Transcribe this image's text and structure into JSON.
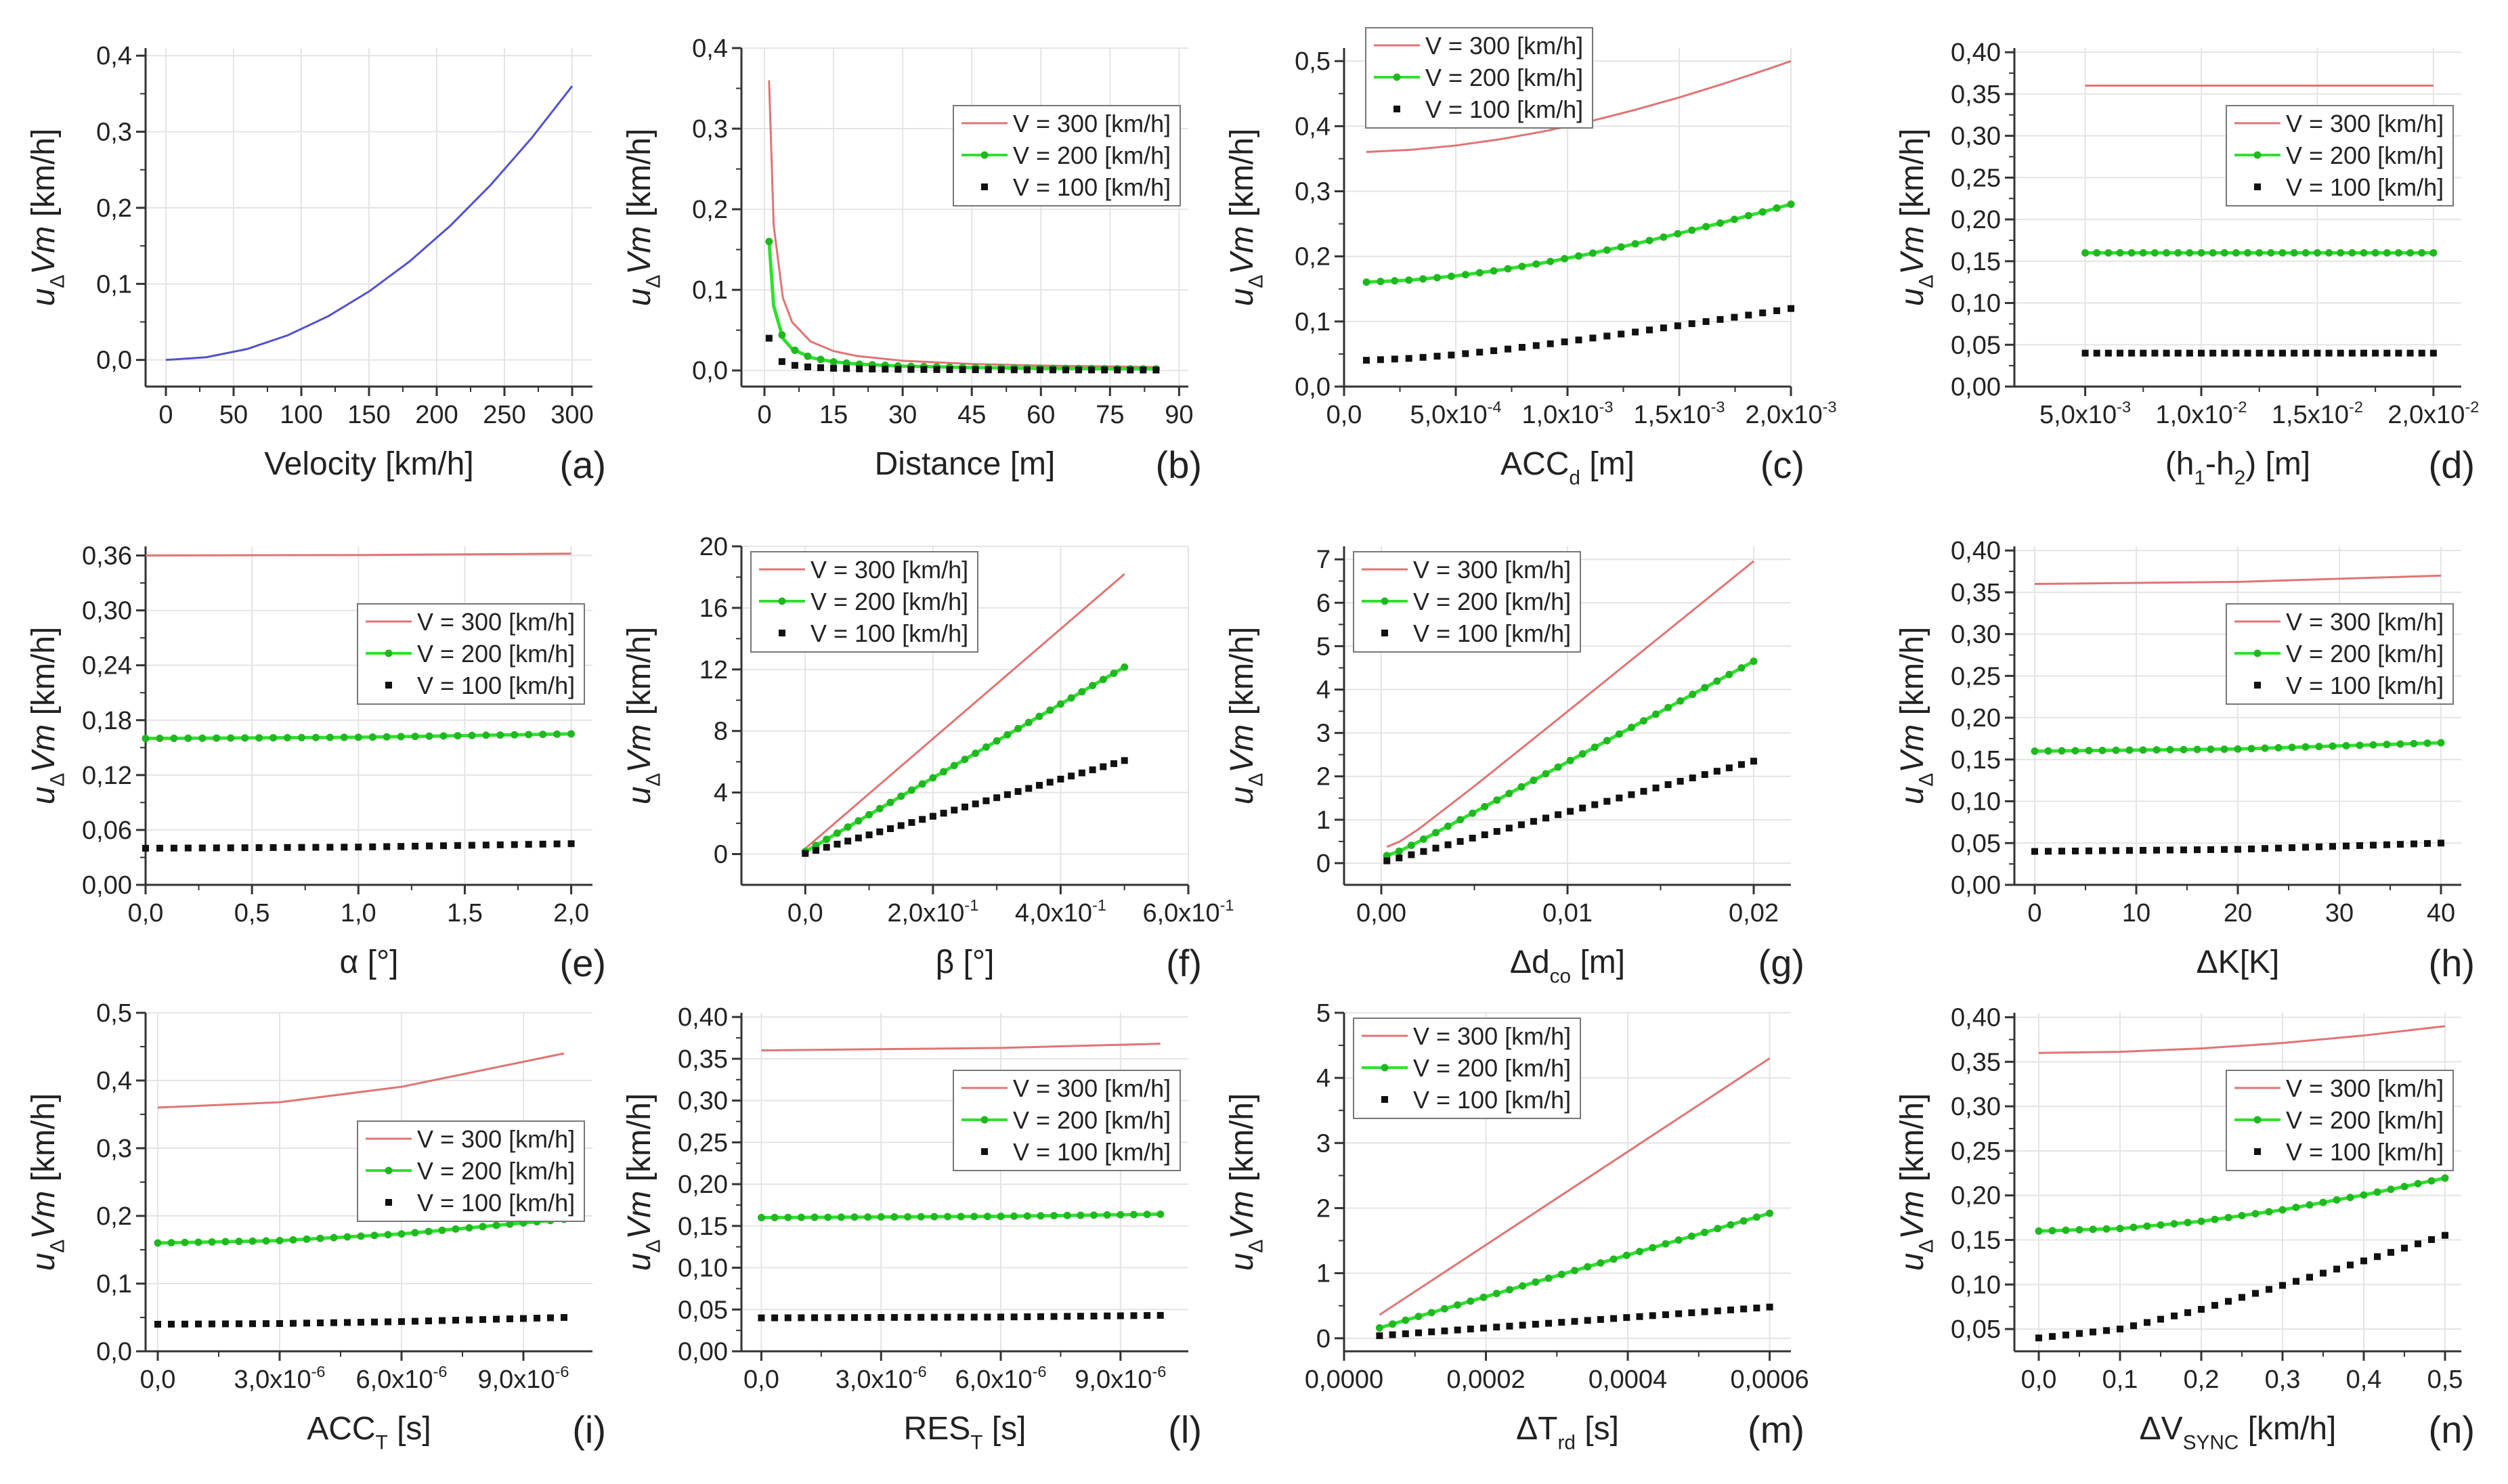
{
  "series_colors": {
    "single": "#5252cc",
    "v300": "#e07474",
    "v200": "#2fe02f",
    "v200_marker": "#1fb81f",
    "v100": "#111111",
    "grid": "#e4e4e4",
    "axis": "#333333"
  },
  "ylabel": "*u*_{Δ}*Vm* [km/h]",
  "chart_data": [
    {
      "id": "a",
      "panel_label": "(a)",
      "type": "line",
      "xlabel": "Velocity [km/h]",
      "legend": null,
      "xlim": [
        -15,
        315
      ],
      "ylim": [
        -0.035,
        0.41
      ],
      "xticks": [
        [
          0,
          "0"
        ],
        [
          50,
          "50"
        ],
        [
          100,
          "100"
        ],
        [
          150,
          "150"
        ],
        [
          200,
          "200"
        ],
        [
          250,
          "250"
        ],
        [
          300,
          "300"
        ]
      ],
      "yticks": [
        [
          0,
          "0,0"
        ],
        [
          0.1,
          "0,1"
        ],
        [
          0.2,
          "0,2"
        ],
        [
          0.3,
          "0,3"
        ],
        [
          0.4,
          "0,4"
        ]
      ],
      "x": [
        0,
        30,
        60,
        90,
        120,
        150,
        180,
        210,
        240,
        270,
        300
      ],
      "series": [
        {
          "name": "u",
          "y": [
            0,
            0.0036,
            0.0144,
            0.0324,
            0.0576,
            0.09,
            0.1296,
            0.1764,
            0.2304,
            0.2916,
            0.36
          ]
        }
      ]
    },
    {
      "id": "b",
      "panel_label": "(b)",
      "type": "line",
      "xlabel": "Distance [m]",
      "legend": "upper-right",
      "xlim": [
        -5,
        92
      ],
      "ylim": [
        -0.02,
        0.4
      ],
      "xticks": [
        [
          0,
          "0"
        ],
        [
          15,
          "15"
        ],
        [
          30,
          "30"
        ],
        [
          45,
          "45"
        ],
        [
          60,
          "60"
        ],
        [
          75,
          "75"
        ],
        [
          90,
          "90"
        ]
      ],
      "yticks": [
        [
          0,
          "0,0"
        ],
        [
          0.1,
          "0,1"
        ],
        [
          0.2,
          "0,2"
        ],
        [
          0.3,
          "0,3"
        ],
        [
          0.4,
          "0,4"
        ]
      ],
      "x": [
        1,
        2,
        4,
        6,
        10,
        15,
        20,
        30,
        45,
        60,
        85
      ],
      "series": [
        {
          "name": "V = 300 [km/h]",
          "y": [
            0.36,
            0.18,
            0.09,
            0.06,
            0.036,
            0.024,
            0.018,
            0.012,
            0.008,
            0.006,
            0.0042
          ]
        },
        {
          "name": "V = 200 [km/h]",
          "y": [
            0.16,
            0.08,
            0.04,
            0.0267,
            0.016,
            0.0107,
            0.008,
            0.0053,
            0.0036,
            0.0027,
            0.0019
          ]
        },
        {
          "name": "V = 100 [km/h]",
          "y": [
            0.04,
            0.02,
            0.01,
            0.0067,
            0.004,
            0.0027,
            0.002,
            0.0013,
            0.0009,
            0.0007,
            0.0005
          ]
        }
      ]
    },
    {
      "id": "c",
      "panel_label": "(c)",
      "type": "line",
      "xlabel": "ACC_{d} [m]",
      "legend": "above-left",
      "xlim": [
        0,
        0.002
      ],
      "ylim": [
        0,
        0.52
      ],
      "xticks": [
        [
          0,
          "0,0"
        ],
        [
          0.0005,
          "5,0x10^{-4}"
        ],
        [
          0.001,
          "1,0x10^{-3}"
        ],
        [
          0.0015,
          "1,5x10^{-3}"
        ],
        [
          0.002,
          "2,0x10^{-3}"
        ]
      ],
      "yticks": [
        [
          0,
          "0,0"
        ],
        [
          0.1,
          "0,1"
        ],
        [
          0.2,
          "0,2"
        ],
        [
          0.3,
          "0,3"
        ],
        [
          0.4,
          "0,4"
        ],
        [
          0.5,
          "0,5"
        ]
      ],
      "x": [
        0.0001,
        0.0003,
        0.0005,
        0.0007,
        0.0009,
        0.0011,
        0.0013,
        0.0015,
        0.0017,
        0.0019,
        0.002
      ],
      "series": [
        {
          "name": "V = 300 [km/h]",
          "y": [
            0.3604,
            0.3637,
            0.3703,
            0.38,
            0.3924,
            0.4074,
            0.4249,
            0.4442,
            0.4654,
            0.4881,
            0.5
          ]
        },
        {
          "name": "V = 200 [km/h]",
          "y": [
            0.1604,
            0.1637,
            0.17,
            0.1791,
            0.1906,
            0.204,
            0.219,
            0.2353,
            0.2526,
            0.2708,
            0.2802
          ]
        },
        {
          "name": "V = 100 [km/h]",
          "y": [
            0.0404,
            0.0434,
            0.049,
            0.0562,
            0.0647,
            0.0739,
            0.0836,
            0.0937,
            0.104,
            0.1146,
            0.1199
          ]
        }
      ]
    },
    {
      "id": "d",
      "panel_label": "(d)",
      "type": "line",
      "xlabel": "(h_{1}-h_{2}) [m]",
      "legend": "upper-right",
      "xlim": [
        0.00195,
        0.0212
      ],
      "ylim": [
        0,
        0.405
      ],
      "xticks": [
        [
          0.005,
          "5,0x10^{-3}"
        ],
        [
          0.01,
          "1,0x10^{-2}"
        ],
        [
          0.015,
          "1,5x10^{-2}"
        ],
        [
          0.02,
          "2,0x10^{-2}"
        ]
      ],
      "yticks": [
        [
          0,
          "0,00"
        ],
        [
          0.05,
          "0,05"
        ],
        [
          0.1,
          "0,10"
        ],
        [
          0.15,
          "0,15"
        ],
        [
          0.2,
          "0,20"
        ],
        [
          0.25,
          "0,25"
        ],
        [
          0.3,
          "0,30"
        ],
        [
          0.35,
          "0,35"
        ],
        [
          0.4,
          "0,40"
        ]
      ],
      "x": [
        0.005,
        0.02
      ],
      "series": [
        {
          "name": "V = 300 [km/h]",
          "y": [
            0.36,
            0.36
          ]
        },
        {
          "name": "V = 200 [km/h]",
          "y": [
            0.16,
            0.16
          ]
        },
        {
          "name": "V = 100 [km/h]",
          "y": [
            0.04,
            0.04
          ]
        }
      ]
    },
    {
      "id": "e",
      "panel_label": "(e)",
      "type": "line",
      "xlabel": "α [°]",
      "legend": "upper-right",
      "xlim": [
        0,
        2.1
      ],
      "ylim": [
        0,
        0.37
      ],
      "xticks": [
        [
          0,
          "0,0"
        ],
        [
          0.5,
          "0,5"
        ],
        [
          1,
          "1,0"
        ],
        [
          1.5,
          "1,5"
        ],
        [
          2,
          "2,0"
        ]
      ],
      "yticks": [
        [
          0,
          "0,00"
        ],
        [
          0.06,
          "0,06"
        ],
        [
          0.12,
          "0,12"
        ],
        [
          0.18,
          "0,18"
        ],
        [
          0.24,
          "0,24"
        ],
        [
          0.3,
          "0,30"
        ],
        [
          0.36,
          "0,36"
        ]
      ],
      "x": [
        0,
        1,
        2
      ],
      "series": [
        {
          "name": "V = 300 [km/h]",
          "y": [
            0.36,
            0.3605,
            0.362
          ]
        },
        {
          "name": "V = 200 [km/h]",
          "y": [
            0.16,
            0.1613,
            0.165
          ]
        },
        {
          "name": "V = 100 [km/h]",
          "y": [
            0.04,
            0.0413,
            0.045
          ]
        }
      ]
    },
    {
      "id": "f",
      "panel_label": "(f)",
      "type": "line",
      "xlabel": "β [°]",
      "legend": "top-left",
      "xlim": [
        -0.1,
        0.6
      ],
      "ylim": [
        -2,
        20
      ],
      "xticks": [
        [
          0,
          "0,0"
        ],
        [
          0.2,
          "2,0x10^{-1}"
        ],
        [
          0.4,
          "4,0x10^{-1}"
        ],
        [
          0.6,
          "6,0x10^{-1}"
        ]
      ],
      "yticks": [
        [
          0,
          "0"
        ],
        [
          4,
          "4"
        ],
        [
          8,
          "8"
        ],
        [
          12,
          "12"
        ],
        [
          16,
          "16"
        ],
        [
          20,
          "20"
        ]
      ],
      "x": [
        0,
        0.5
      ],
      "series": [
        {
          "name": "V = 300 [km/h]",
          "y": [
            0.36,
            18.2
          ]
        },
        {
          "name": "V = 200 [km/h]",
          "y": [
            0.16,
            12.15
          ]
        },
        {
          "name": "V = 100 [km/h]",
          "y": [
            0.04,
            6.08
          ]
        }
      ]
    },
    {
      "id": "g",
      "panel_label": "(g)",
      "type": "line",
      "xlabel": "Δd_{co} [m]",
      "legend": "top-left",
      "xlim": [
        -0.002,
        0.022
      ],
      "ylim": [
        -0.5,
        7.3
      ],
      "xticks": [
        [
          0,
          "0,00"
        ],
        [
          0.01,
          "0,01"
        ],
        [
          0.02,
          "0,02"
        ]
      ],
      "yticks": [
        [
          0,
          "0"
        ],
        [
          1,
          "1"
        ],
        [
          2,
          "2"
        ],
        [
          3,
          "3"
        ],
        [
          4,
          "4"
        ],
        [
          5,
          "5"
        ],
        [
          6,
          "6"
        ],
        [
          7,
          "7"
        ]
      ],
      "x": [
        0.0003,
        0.001,
        0.002,
        0.005,
        0.01,
        0.015,
        0.02
      ],
      "series": [
        {
          "name": "V = 300 [km/h]",
          "y": [
            0.375,
            0.5,
            0.783,
            1.774,
            3.494,
            5.225,
            6.959
          ]
        },
        {
          "name": "V = 200 [km/h]",
          "y": [
            0.1746,
            0.2822,
            0.492,
            1.1735,
            2.3305,
            3.4912,
            4.6528
          ]
        },
        {
          "name": "V = 100 [km/h]",
          "y": [
            0.0533,
            0.124,
            0.238,
            0.589,
            1.176,
            1.7625,
            2.35
          ]
        }
      ]
    },
    {
      "id": "h",
      "panel_label": "(h)",
      "type": "line",
      "xlabel": "ΔK[K]",
      "legend": "upper-right",
      "xlim": [
        -2,
        42
      ],
      "ylim": [
        0,
        0.405
      ],
      "xticks": [
        [
          0,
          "0"
        ],
        [
          10,
          "10"
        ],
        [
          20,
          "20"
        ],
        [
          30,
          "30"
        ],
        [
          40,
          "40"
        ]
      ],
      "yticks": [
        [
          0,
          "0,00"
        ],
        [
          0.05,
          "0,05"
        ],
        [
          0.1,
          "0,10"
        ],
        [
          0.15,
          "0,15"
        ],
        [
          0.2,
          "0,20"
        ],
        [
          0.25,
          "0,25"
        ],
        [
          0.3,
          "0,30"
        ],
        [
          0.35,
          "0,35"
        ],
        [
          0.4,
          "0,40"
        ]
      ],
      "x": [
        0,
        20,
        40
      ],
      "series": [
        {
          "name": "V = 300 [km/h]",
          "y": [
            0.36,
            0.3625,
            0.37
          ]
        },
        {
          "name": "V = 200 [km/h]",
          "y": [
            0.16,
            0.1625,
            0.17
          ]
        },
        {
          "name": "V = 100 [km/h]",
          "y": [
            0.04,
            0.0425,
            0.05
          ]
        }
      ]
    },
    {
      "id": "i",
      "panel_label": "(i)",
      "type": "line",
      "xlabel": "ACC_{T} [s]",
      "legend": "center-right",
      "xlim": [
        -3e-07,
        1.07e-05
      ],
      "ylim": [
        0,
        0.5
      ],
      "xticks": [
        [
          0,
          "0,0"
        ],
        [
          3e-06,
          "3,0x10^{-6}"
        ],
        [
          6e-06,
          "6,0x10^{-6}"
        ],
        [
          9e-06,
          "9,0x10^{-6}"
        ]
      ],
      "yticks": [
        [
          0,
          "0,0"
        ],
        [
          0.1,
          "0,1"
        ],
        [
          0.2,
          "0,2"
        ],
        [
          0.3,
          "0,3"
        ],
        [
          0.4,
          "0,4"
        ],
        [
          0.5,
          "0,5"
        ]
      ],
      "x": [
        0,
        3e-06,
        6e-06,
        1e-05
      ],
      "series": [
        {
          "name": "V = 300 [km/h]",
          "y": [
            0.36,
            0.3679,
            0.3907,
            0.44
          ]
        },
        {
          "name": "V = 200 [km/h]",
          "y": [
            0.16,
            0.1635,
            0.1734,
            0.195
          ]
        },
        {
          "name": "V = 100 [km/h]",
          "y": [
            0.04,
            0.041,
            0.0439,
            0.05
          ]
        }
      ]
    },
    {
      "id": "l",
      "panel_label": "(l)",
      "type": "line",
      "xlabel": "RES_{T} [s]",
      "legend": "upper-right",
      "xlim": [
        -5e-07,
        1.07e-05
      ],
      "ylim": [
        0,
        0.405
      ],
      "xticks": [
        [
          0,
          "0,0"
        ],
        [
          3e-06,
          "3,0x10^{-6}"
        ],
        [
          6e-06,
          "6,0x10^{-6}"
        ],
        [
          9e-06,
          "9,0x10^{-6}"
        ]
      ],
      "yticks": [
        [
          0,
          "0,00"
        ],
        [
          0.05,
          "0,05"
        ],
        [
          0.1,
          "0,10"
        ],
        [
          0.15,
          "0,15"
        ],
        [
          0.2,
          "0,20"
        ],
        [
          0.25,
          "0,25"
        ],
        [
          0.3,
          "0,30"
        ],
        [
          0.35,
          "0,35"
        ],
        [
          0.4,
          "0,40"
        ]
      ],
      "x": [
        0,
        6e-06,
        1e-05
      ],
      "series": [
        {
          "name": "V = 300 [km/h]",
          "y": [
            0.36,
            0.363,
            0.368
          ]
        },
        {
          "name": "V = 200 [km/h]",
          "y": [
            0.16,
            0.1615,
            0.164
          ]
        },
        {
          "name": "V = 100 [km/h]",
          "y": [
            0.04,
            0.041,
            0.043
          ]
        }
      ]
    },
    {
      "id": "m",
      "panel_label": "(m)",
      "type": "line",
      "xlabel": "ΔT_{rd} [s]",
      "legend": "top-left",
      "xlim": [
        0,
        0.00063
      ],
      "ylim": [
        -0.2,
        5
      ],
      "xticks": [
        [
          0,
          "0,0000"
        ],
        [
          0.0002,
          "0,0002"
        ],
        [
          0.0004,
          "0,0004"
        ],
        [
          0.0006,
          "0,0006"
        ]
      ],
      "yticks": [
        [
          0,
          "0"
        ],
        [
          1,
          "1"
        ],
        [
          2,
          "2"
        ],
        [
          3,
          "3"
        ],
        [
          4,
          "4"
        ],
        [
          5,
          "5"
        ]
      ],
      "x": [
        5e-05,
        0.0006
      ],
      "series": [
        {
          "name": "V = 300 [km/h]",
          "y": [
            0.36,
            4.3
          ]
        },
        {
          "name": "V = 200 [km/h]",
          "y": [
            0.16,
            1.92
          ]
        },
        {
          "name": "V = 100 [km/h]",
          "y": [
            0.04,
            0.48
          ]
        }
      ]
    },
    {
      "id": "n",
      "panel_label": "(n)",
      "type": "line",
      "xlabel": "ΔV_{SYNC} [km/h]",
      "legend": "upper-right",
      "xlim": [
        -0.03,
        0.52
      ],
      "ylim": [
        0.025,
        0.405
      ],
      "xticks": [
        [
          0,
          "0,0"
        ],
        [
          0.1,
          "0,1"
        ],
        [
          0.2,
          "0,2"
        ],
        [
          0.3,
          "0,3"
        ],
        [
          0.4,
          "0,4"
        ],
        [
          0.5,
          "0,5"
        ]
      ],
      "yticks": [
        [
          0.05,
          "0,05"
        ],
        [
          0.1,
          "0,10"
        ],
        [
          0.15,
          "0,15"
        ],
        [
          0.2,
          "0,20"
        ],
        [
          0.25,
          "0,25"
        ],
        [
          0.3,
          "0,30"
        ],
        [
          0.35,
          "0,35"
        ],
        [
          0.4,
          "0,40"
        ]
      ],
      "x": [
        0,
        0.1,
        0.2,
        0.3,
        0.4,
        0.5
      ],
      "series": [
        {
          "name": "V = 300 [km/h]",
          "y": [
            0.36,
            0.3612,
            0.365,
            0.3711,
            0.3795,
            0.39
          ]
        },
        {
          "name": "V = 200 [km/h]",
          "y": [
            0.16,
            0.1628,
            0.1709,
            0.1838,
            0.2005,
            0.2195
          ]
        },
        {
          "name": "V = 100 [km/h]",
          "y": [
            0.04,
            0.05,
            0.0721,
            0.099,
            0.1265,
            0.1552
          ]
        }
      ]
    }
  ]
}
